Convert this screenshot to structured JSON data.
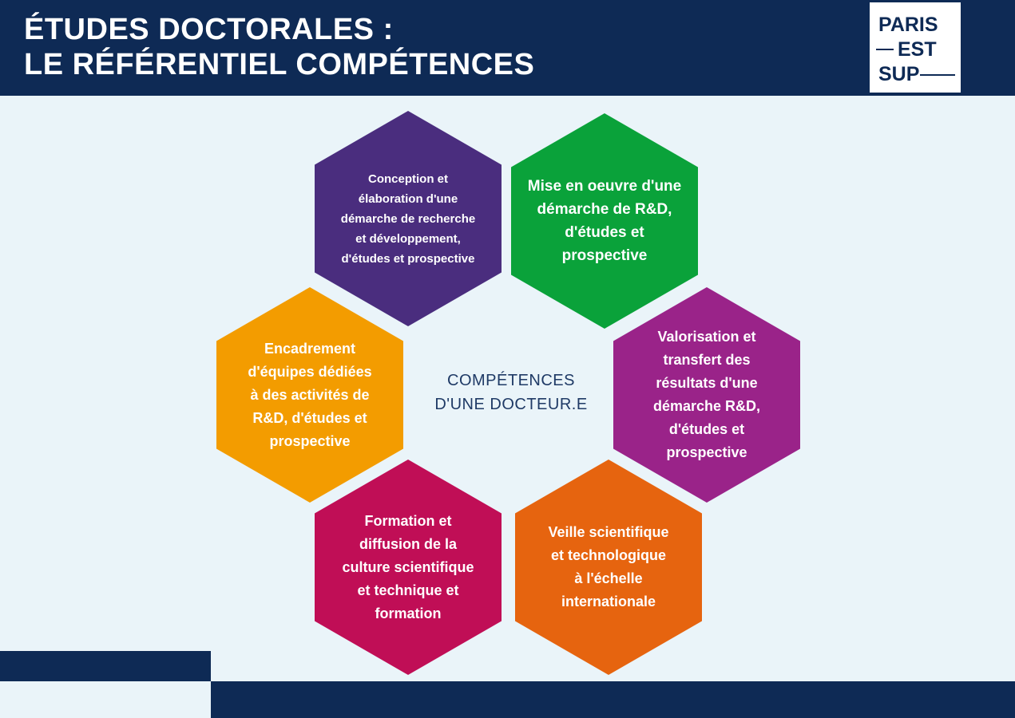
{
  "header": {
    "title_line1": "ÉTUDES DOCTORALES :",
    "title_line2": "LE RÉFÉRENTIEL COMPÉTENCES"
  },
  "logo": {
    "line1": "PARIS",
    "line2": "EST",
    "line3": "SUP"
  },
  "center_label": "COMPÉTENCES\nD'UNE DOCTEUR.E",
  "hexagons": [
    {
      "label": "Conception et\nélaboration d'une\ndémarche de recherche\net développement,\nd'études et prospective",
      "color": "#4a2d7e"
    },
    {
      "label": "Mise en oeuvre d'une\ndémarche de R&D,\nd'études et\nprospective",
      "color": "#0aa23a"
    },
    {
      "label": "Encadrement\nd'équipes dédiées\nà des activités de\nR&D, d'études et\nprospective",
      "color": "#f39c00"
    },
    {
      "label": "Valorisation et\ntransfert des\nrésultats d'une\ndémarche R&D,\nd'études et\nprospective",
      "color": "#9a2389"
    },
    {
      "label": "Formation et\ndiffusion de la\nculture scientifique\net technique et\nformation",
      "color": "#c00e56"
    },
    {
      "label": "Veille scientifique\net technologique\nà l'échelle\ninternationale",
      "color": "#e6640f"
    }
  ],
  "colors": {
    "navy": "#0e2a55",
    "background": "#eaf4f9"
  }
}
